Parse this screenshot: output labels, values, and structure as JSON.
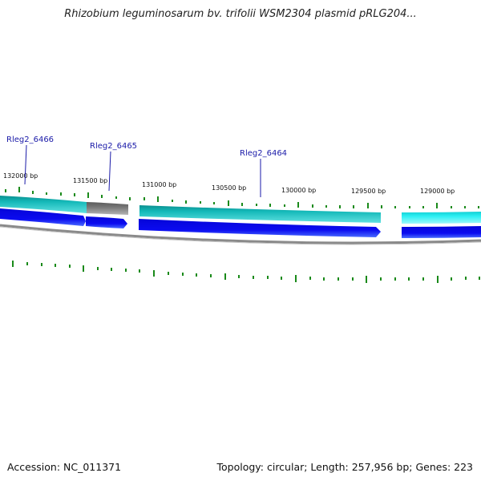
{
  "header": {
    "title": "Rhizobium leguminosarum bv. trifolii WSM2304 plasmid pRLG204..."
  },
  "footer": {
    "accession": "Accession: NC_011371",
    "summary": "Topology: circular; Length: 257,956 bp; Genes: 223"
  },
  "map": {
    "position_labels": [
      "132000 bp",
      "131500 bp",
      "131000 bp",
      "130500 bp",
      "130000 bp",
      "129500 bp",
      "129000 bp"
    ],
    "gene_labels": [
      "Rleg2_6466",
      "Rleg2_6465",
      "Rleg2_6464"
    ],
    "colors": {
      "teal_band": "#11b3b3",
      "cyan_band": "#22e4e8",
      "gray_band": "#707070",
      "blue_arrow": "#0a0ae6",
      "backbone": "#8a8a8a",
      "tick": "#1a8a1a",
      "label": "#1a1aa8"
    }
  }
}
